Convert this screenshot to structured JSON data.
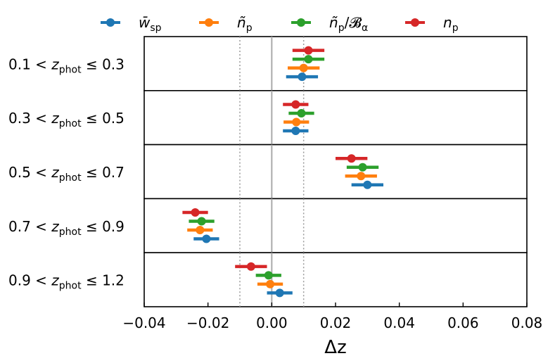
{
  "chart_data": {
    "type": "errorbar-forest",
    "xlabel": "Δz",
    "xlim": [
      -0.04,
      0.08
    ],
    "xticks": [
      -0.04,
      -0.02,
      0.0,
      0.02,
      0.04,
      0.06,
      0.08
    ],
    "xtick_labels": [
      "−0.04",
      "−0.02",
      "0.00",
      "0.02",
      "0.04",
      "0.06",
      "0.08"
    ],
    "reference_lines": {
      "zero": 0.0,
      "dotted": [
        -0.01,
        0.01
      ]
    },
    "legend_position": "top",
    "series": [
      {
        "name": "w̄_sp",
        "label_main": "w̄",
        "label_sub": "sp",
        "color": "#1f77b4",
        "values": [
          0.0095,
          0.0075,
          0.03,
          -0.0205,
          0.0025
        ],
        "errors": [
          0.005,
          0.004,
          0.005,
          0.004,
          0.004
        ]
      },
      {
        "name": "ñ_p",
        "label_main": "ñ",
        "label_sub": "p",
        "color": "#ff7f0e",
        "values": [
          0.01,
          0.0077,
          0.028,
          -0.0225,
          -0.0005
        ],
        "errors": [
          0.005,
          0.004,
          0.005,
          0.004,
          0.004
        ]
      },
      {
        "name": "ñ_p/B_α",
        "label_main": "ñ",
        "label_sub": "p",
        "label_tail": "/𝓑",
        "label_tail_sub": "α",
        "color": "#2ca02c",
        "values": [
          0.0115,
          0.0093,
          0.0285,
          -0.022,
          -0.001
        ],
        "errors": [
          0.005,
          0.004,
          0.005,
          0.004,
          0.004
        ]
      },
      {
        "name": "n_p",
        "label_main": "n",
        "label_sub": "p",
        "color": "#d62728",
        "values": [
          0.0115,
          0.0075,
          0.025,
          -0.024,
          -0.0065
        ],
        "errors": [
          0.005,
          0.004,
          0.005,
          0.004,
          0.005
        ]
      }
    ],
    "panels": [
      {
        "lo": "0.1",
        "hi": "0.3"
      },
      {
        "lo": "0.3",
        "hi": "0.5"
      },
      {
        "lo": "0.5",
        "hi": "0.7"
      },
      {
        "lo": "0.7",
        "hi": "0.9"
      },
      {
        "lo": "0.9",
        "hi": "1.2"
      }
    ],
    "panel_label_var": "z",
    "panel_label_sub": "phot"
  }
}
